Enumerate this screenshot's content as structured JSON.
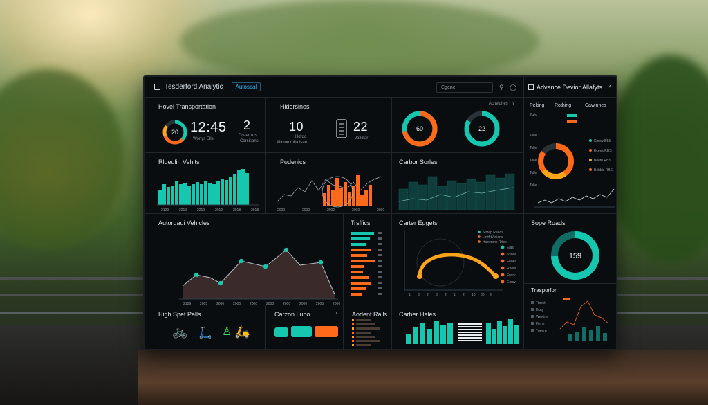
{
  "app": {
    "title": "Tesderford Analytic",
    "tag": "Autoscal",
    "search": "Cgenel"
  },
  "right_header": {
    "title": "Advance Devion",
    "subtitle": "Allafyts"
  },
  "panels": {
    "hover_transport": {
      "title": "Hovel Transportation",
      "gauge_value": "20",
      "big_value": "12:45",
      "big_sub": "Wonys Ells",
      "side_value": "2",
      "side_sub1": "Dozer uzs",
      "side_sub2": "Carsisans"
    },
    "hidersines": {
      "title": "Hidersines",
      "value1": "10",
      "value1_sub": "Hdrdo",
      "value1_sub2": "Ailmoe mita isan",
      "value2": "22",
      "value2_sub": "Jozdlar"
    },
    "donuts": {
      "donut1_value": "60",
      "donut2_value": "22",
      "header": "Achviohes"
    },
    "ridership": {
      "title": "Rldedlin Vehlts",
      "xlabels": [
        "2109",
        "2219",
        "2219",
        "2019",
        "2018",
        "2018"
      ]
    },
    "pederics": {
      "title": "Podenics",
      "xlabels": [
        "2000",
        "2000",
        "2000",
        "2000",
        "2000"
      ]
    },
    "carbon_series": {
      "title": "Carbor Sorles"
    },
    "autonomous": {
      "title": "Autorgaui Vehicles",
      "xlabels": [
        "2109",
        "2005",
        "2000",
        "2000",
        "2000",
        "2000",
        "2000",
        "2000",
        "2005",
        "2000"
      ]
    },
    "traffic": {
      "title": "Trsffics"
    },
    "carbon_bars": {
      "title": "Carter Eggets",
      "legend": [
        "Sitzep Reeds",
        "Lirrtfrt Anions",
        "Hoeenms Rrtes"
      ],
      "list": [
        "Eiasf",
        "Ssnde",
        "Fooes",
        "Rnors",
        "Fosrv",
        "Eorsv"
      ],
      "xlabels": [
        "1",
        "3",
        "2",
        "3",
        "2",
        "1",
        "2",
        "10",
        "30",
        "9"
      ]
    },
    "high_speed": {
      "title": "High Spet Palls"
    },
    "carbon_lube": {
      "title": "Carzon Lubo"
    },
    "accident": {
      "title": "Aodent Rails"
    },
    "carbon_hales": {
      "title": "Carber Hales"
    }
  },
  "right_panel": {
    "tabs": [
      "Peking",
      "Rothing",
      "Cawinnes"
    ],
    "row_label": "Tals",
    "donut_legend": [
      "Sioow BBS",
      "Ecees RBS",
      "Boeth RBS",
      "Bebbis RBS"
    ],
    "side_scale": [
      "Tolle",
      "Tolle",
      "Tolle",
      "Tolle",
      "Tolle"
    ],
    "sope_title": "Sope Roads",
    "sope_value": "159",
    "transport_title": "Trasporfon",
    "transport_list": [
      "Ttosvt",
      "Ecay",
      "Weeline",
      "Fiene",
      "Tueerp"
    ]
  },
  "colors": {
    "teal": "#16c7b0",
    "orange": "#ff6a1a",
    "amber": "#ffa41b",
    "bg": "#0a0d10"
  }
}
